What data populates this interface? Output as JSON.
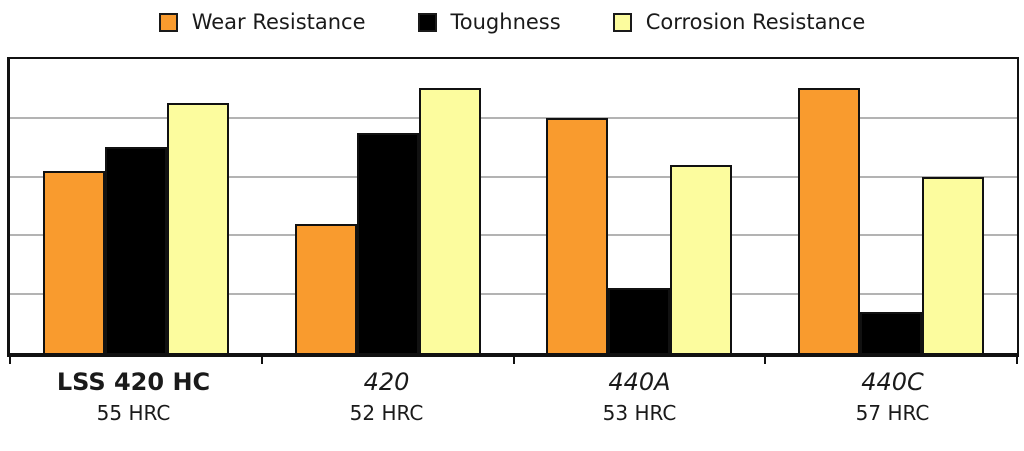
{
  "legend": {
    "items": [
      {
        "label": "Wear Resistance",
        "color": "#F99B2E"
      },
      {
        "label": "Toughness",
        "color": "#000000"
      },
      {
        "label": "Corrosion Resistance",
        "color": "#FCFC9E"
      }
    ]
  },
  "chart_data": {
    "type": "bar",
    "title": "",
    "xlabel": "",
    "ylabel": "",
    "categories": [
      "LSS 420 HC",
      "420",
      "440A",
      "440C"
    ],
    "category_sublabels": [
      "55 HRC",
      "52 HRC",
      "53 HRC",
      "57 HRC"
    ],
    "category_styles": [
      "bold",
      "italic",
      "italic",
      "italic"
    ],
    "series": [
      {
        "name": "Wear Resistance",
        "color": "#F99B2E",
        "values": [
          3.1,
          2.2,
          4.0,
          4.5
        ]
      },
      {
        "name": "Toughness",
        "color": "#000000",
        "values": [
          3.5,
          3.75,
          1.1,
          0.7
        ]
      },
      {
        "name": "Corrosion Resistance",
        "color": "#FCFC9E",
        "values": [
          4.25,
          4.5,
          3.2,
          3.0
        ]
      }
    ],
    "ylim": [
      0,
      5
    ],
    "gridline_values": [
      1,
      2,
      3,
      4
    ],
    "y_tick_labels_shown": false,
    "grid": true,
    "legend_position": "top",
    "colors": {
      "frame": "#111111",
      "gridline": "#b3b3b3",
      "text": "#1a1a1a",
      "background": "#ffffff"
    }
  }
}
